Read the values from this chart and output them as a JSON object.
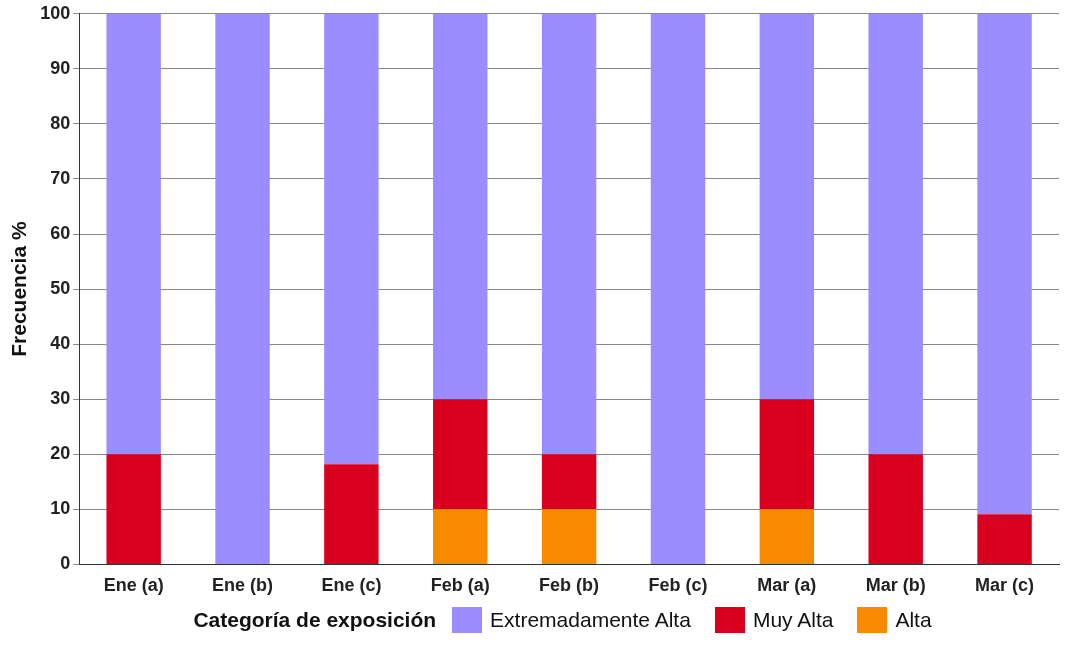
{
  "chart_data": {
    "type": "bar",
    "stacked": true,
    "ylabel": "Frecuencia %",
    "legend_title": "Categoría de exposición",
    "legend": "bottom",
    "grid": "y",
    "categories": [
      "Ene (a)",
      "Ene (b)",
      "Ene (c)",
      "Feb (a)",
      "Feb (b)",
      "Feb (c)",
      "Mar (a)",
      "Mar (b)",
      "Mar (c)"
    ],
    "ylim": [
      0,
      100
    ],
    "yticks": [
      0,
      10,
      20,
      30,
      40,
      50,
      60,
      70,
      80,
      90,
      100
    ],
    "series": [
      {
        "name": "Alta",
        "color": "#f78a00",
        "values": [
          0,
          0,
          0,
          10,
          10,
          0,
          10,
          0,
          0
        ]
      },
      {
        "name": "Muy Alta",
        "color": "#d9001f",
        "values": [
          20,
          0,
          18.2,
          20,
          10,
          0,
          20,
          20,
          9.1
        ]
      },
      {
        "name": "Extremadamente Alta",
        "color": "#9b8cff",
        "values": [
          80,
          100,
          81.8,
          70,
          80,
          100,
          70,
          80,
          90.9
        ]
      }
    ]
  }
}
